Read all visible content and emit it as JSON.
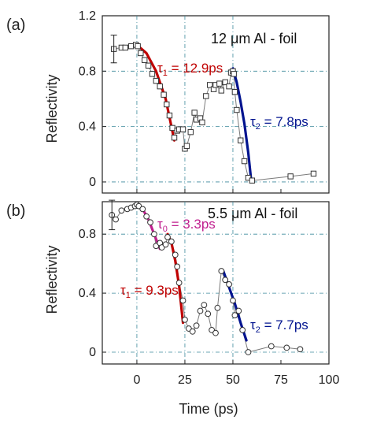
{
  "chart_data": [
    {
      "type": "scatter",
      "panel_label": "(a)",
      "sample_label": "12 μm Al - foil",
      "ylabel": "Reflectivity",
      "xlim": [
        -18,
        100
      ],
      "ylim": [
        -0.08,
        1.2
      ],
      "yticks": [
        0,
        0.4,
        0.8,
        1.2
      ],
      "ytick_labels": [
        "0",
        "0.4",
        "0.8",
        "1.2"
      ],
      "grid_y": [
        0,
        0.4,
        0.8
      ],
      "grid_x": [
        0,
        25,
        50
      ],
      "marker": "square",
      "measured": {
        "x": [
          -12,
          -8,
          -6,
          -3,
          -0.5,
          0.5,
          2,
          4,
          6,
          8,
          10,
          12,
          14,
          15.5,
          17,
          18.5,
          19.5,
          21,
          22,
          24,
          25,
          26,
          28,
          30,
          31,
          33,
          34,
          36,
          38,
          40,
          41,
          43,
          44,
          46,
          48,
          49,
          50,
          50.5,
          51,
          52,
          54,
          56,
          58,
          60,
          80,
          92
        ],
        "y": [
          0.96,
          0.97,
          0.97,
          0.98,
          0.99,
          0.98,
          0.93,
          0.88,
          0.84,
          0.78,
          0.73,
          0.69,
          0.63,
          0.56,
          0.48,
          0.39,
          0.32,
          0.37,
          0.38,
          0.38,
          0.24,
          0.26,
          0.36,
          0.5,
          0.45,
          0.46,
          0.43,
          0.62,
          0.7,
          0.67,
          0.7,
          0.71,
          0.66,
          0.72,
          0.69,
          0.79,
          0.8,
          0.78,
          0.65,
          0.52,
          0.3,
          0.15,
          0.03,
          0.01,
          0.04,
          0.06
        ]
      },
      "error_bar": {
        "x": -12,
        "y": 0.96,
        "low": 0.86,
        "high": 1.06
      },
      "fits": [
        {
          "label": "τ₁ = 12.9ps",
          "color": "#c00000",
          "x": [
            0,
            5,
            10,
            15,
            19.5
          ],
          "y": [
            0.99,
            0.93,
            0.8,
            0.6,
            0.3
          ]
        },
        {
          "label": "τ₂ = 7.8ps",
          "color": "#00138f",
          "x": [
            50,
            52,
            54,
            56,
            58,
            59.5
          ],
          "y": [
            0.82,
            0.72,
            0.58,
            0.42,
            0.21,
            0.01
          ]
        }
      ]
    },
    {
      "type": "scatter",
      "panel_label": "(b)",
      "sample_label": "5.5 μm Al - foil",
      "xlabel": "Time (ps)",
      "ylabel": "Reflectivity",
      "xlim": [
        -18,
        100
      ],
      "ylim": [
        -0.08,
        1.02
      ],
      "xticks": [
        0,
        25,
        50,
        75,
        100
      ],
      "xtick_labels": [
        "0",
        "25",
        "50",
        "75",
        "100"
      ],
      "yticks": [
        0,
        0.4,
        0.8
      ],
      "ytick_labels": [
        "0",
        "0.4",
        "0.8"
      ],
      "grid_y": [
        0,
        0.4,
        0.8
      ],
      "grid_x": [
        0,
        25,
        50
      ],
      "marker": "circle",
      "measured": {
        "x": [
          -13,
          -11,
          -8,
          -5,
          -3,
          -1,
          0,
          1,
          3,
          5,
          7,
          9,
          10,
          12,
          13,
          15,
          16,
          18,
          20,
          21,
          22,
          24,
          25,
          27,
          29,
          31,
          33,
          35,
          37,
          39,
          41,
          42,
          44,
          46,
          48,
          50,
          51,
          53,
          55,
          58,
          70,
          78,
          85
        ],
        "y": [
          0.93,
          0.9,
          0.96,
          0.97,
          0.98,
          0.99,
          1.0,
          0.99,
          0.97,
          0.92,
          0.88,
          0.8,
          0.72,
          0.74,
          0.71,
          0.73,
          0.78,
          0.75,
          0.66,
          0.58,
          0.47,
          0.35,
          0.22,
          0.16,
          0.14,
          0.18,
          0.28,
          0.32,
          0.26,
          0.15,
          0.13,
          0.3,
          0.55,
          0.49,
          0.46,
          0.35,
          0.25,
          0.28,
          0.15,
          0.0,
          0.04,
          0.03,
          0.02
        ]
      },
      "error_bar": {
        "x": -13,
        "y": 0.93,
        "low": 0.83,
        "high": 1.03
      },
      "fits": [
        {
          "label": "τ₀ = 3.3ps",
          "color": "#c0208f",
          "x": [
            0,
            3,
            6,
            9,
            12
          ],
          "y": [
            1.0,
            0.97,
            0.9,
            0.8,
            0.7
          ]
        },
        {
          "label": "τ₁ = 9.3ps",
          "color": "#c00000",
          "x": [
            16,
            18,
            20,
            22,
            24
          ],
          "y": [
            0.8,
            0.74,
            0.62,
            0.45,
            0.2
          ]
        },
        {
          "label": "τ₂ = 7.7ps",
          "color": "#00138f",
          "x": [
            45,
            48,
            51,
            54,
            57
          ],
          "y": [
            0.55,
            0.44,
            0.33,
            0.2,
            0.08
          ]
        }
      ]
    }
  ]
}
